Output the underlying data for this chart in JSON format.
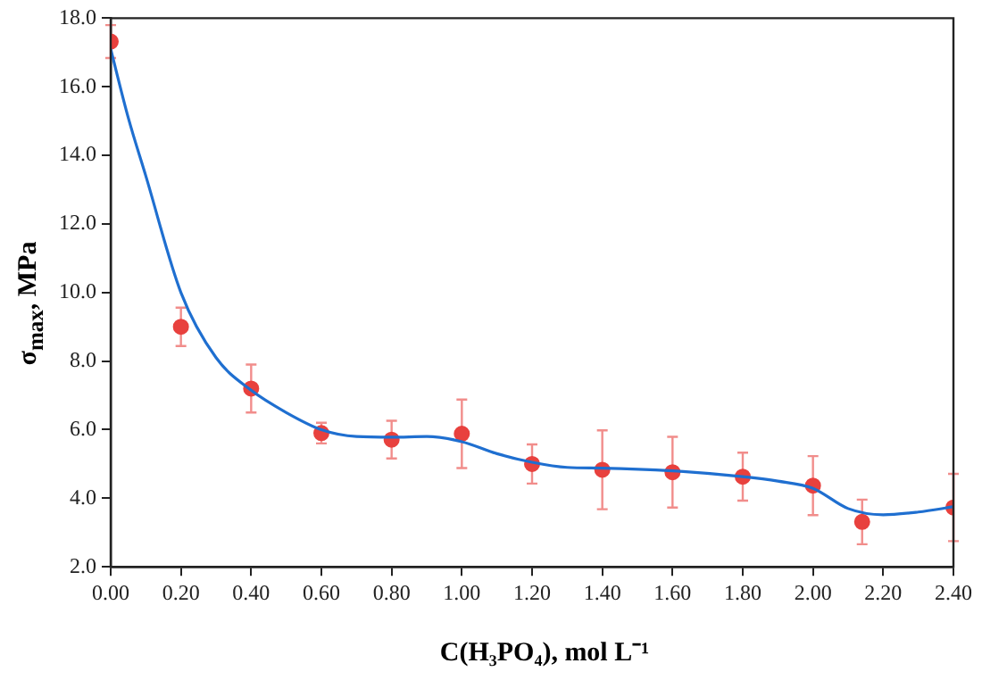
{
  "chart_data": {
    "type": "scatter",
    "xlabel": "C(H₃PO₄), mol L⁻¹",
    "ylabel": "σ$_{max}$, MPa",
    "xlim": [
      0,
      2.4
    ],
    "ylim": [
      2,
      18
    ],
    "xticks": [
      {
        "value": 0,
        "label": "0.00"
      },
      {
        "value": 0.2,
        "label": "0.20"
      },
      {
        "value": 0.4,
        "label": "0.40"
      },
      {
        "value": 0.6,
        "label": "0.60"
      },
      {
        "value": 0.8,
        "label": "0.80"
      },
      {
        "value": 1,
        "label": "1.00"
      },
      {
        "value": 1.2,
        "label": "1.20"
      },
      {
        "value": 1.4,
        "label": "1.40"
      },
      {
        "value": 1.6,
        "label": "1.60"
      },
      {
        "value": 1.8,
        "label": "1.80"
      },
      {
        "value": 2,
        "label": "2.00"
      },
      {
        "value": 2.2,
        "label": "2.20"
      },
      {
        "value": 2.4,
        "label": "2.40"
      }
    ],
    "yticks": [
      {
        "value": 2,
        "label": "2.0"
      },
      {
        "value": 4,
        "label": "4.0"
      },
      {
        "value": 6,
        "label": "6.0"
      },
      {
        "value": 8,
        "label": "8.0"
      },
      {
        "value": 10,
        "label": "10.0"
      },
      {
        "value": 12,
        "label": "12.0"
      },
      {
        "value": 14,
        "label": "14.0"
      },
      {
        "value": 16,
        "label": "16.0"
      },
      {
        "value": 18,
        "label": "18.0"
      }
    ],
    "grid": false,
    "marker": "circle",
    "series": [
      {
        "type": "line",
        "color": "#1f6fd0",
        "marker": "none",
        "x": [
          0,
          0.05,
          0.1,
          0.2,
          0.3,
          0.4,
          0.5,
          0.6,
          0.7,
          0.8,
          0.9,
          1.0,
          1.1,
          1.2,
          1.3,
          1.4,
          1.6,
          1.8,
          1.9,
          2.0,
          2.1,
          2.2,
          2.3,
          2.4
        ],
        "values": [
          17.1,
          15.1,
          13.4,
          10.0,
          8.1,
          7.15,
          6.5,
          6.0,
          5.8,
          5.78,
          5.8,
          5.65,
          5.3,
          5.05,
          4.9,
          4.88,
          4.8,
          4.63,
          4.5,
          4.29,
          3.7,
          3.52,
          3.6,
          3.75
        ]
      },
      {
        "color": "#e8413e",
        "x": [
          0,
          0.2,
          0.4,
          0.6,
          0.8,
          1.0,
          1.2,
          1.4,
          1.6,
          1.8,
          2.0,
          2.14,
          2.4
        ],
        "values": [
          17.32,
          9.0,
          7.2,
          5.9,
          5.71,
          5.88,
          5.0,
          4.83,
          4.76,
          4.63,
          4.37,
          3.31,
          3.73
        ],
        "errors": [
          0.48,
          0.56,
          0.7,
          0.3,
          0.55,
          1.0,
          0.57,
          1.15,
          1.03,
          0.7,
          0.86,
          0.65,
          0.98
        ]
      }
    ]
  }
}
